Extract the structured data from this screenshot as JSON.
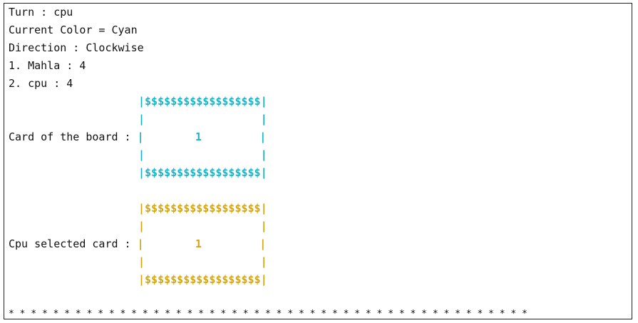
{
  "status": {
    "turn": "Turn : cpu",
    "color": "Current Color = Cyan",
    "direction": "Direction : Clockwise",
    "player1": "1. Mahla : 4",
    "player2": "2. cpu : 4"
  },
  "board_card": {
    "label": "Card of the board : ",
    "top": "|$$$$$$$$$$$$$$$$$$|",
    "side": "|                  |",
    "mid_left": "|        ",
    "value": "1",
    "mid_right": "         |",
    "bottom": "|$$$$$$$$$$$$$$$$$$|",
    "color": "#18b4c6"
  },
  "cpu_card": {
    "label": "Cpu selected card : ",
    "top": "|$$$$$$$$$$$$$$$$$$|",
    "side": "|                  |",
    "mid_left": "|        ",
    "value": "1",
    "mid_right": "         |",
    "bottom": "|$$$$$$$$$$$$$$$$$$|",
    "color": "#d4a50d"
  },
  "separator": "* * * * * * * * * * * * * * * * * * * * * * * * * * * * * * * * * * * * * * * * * * * * * * *"
}
